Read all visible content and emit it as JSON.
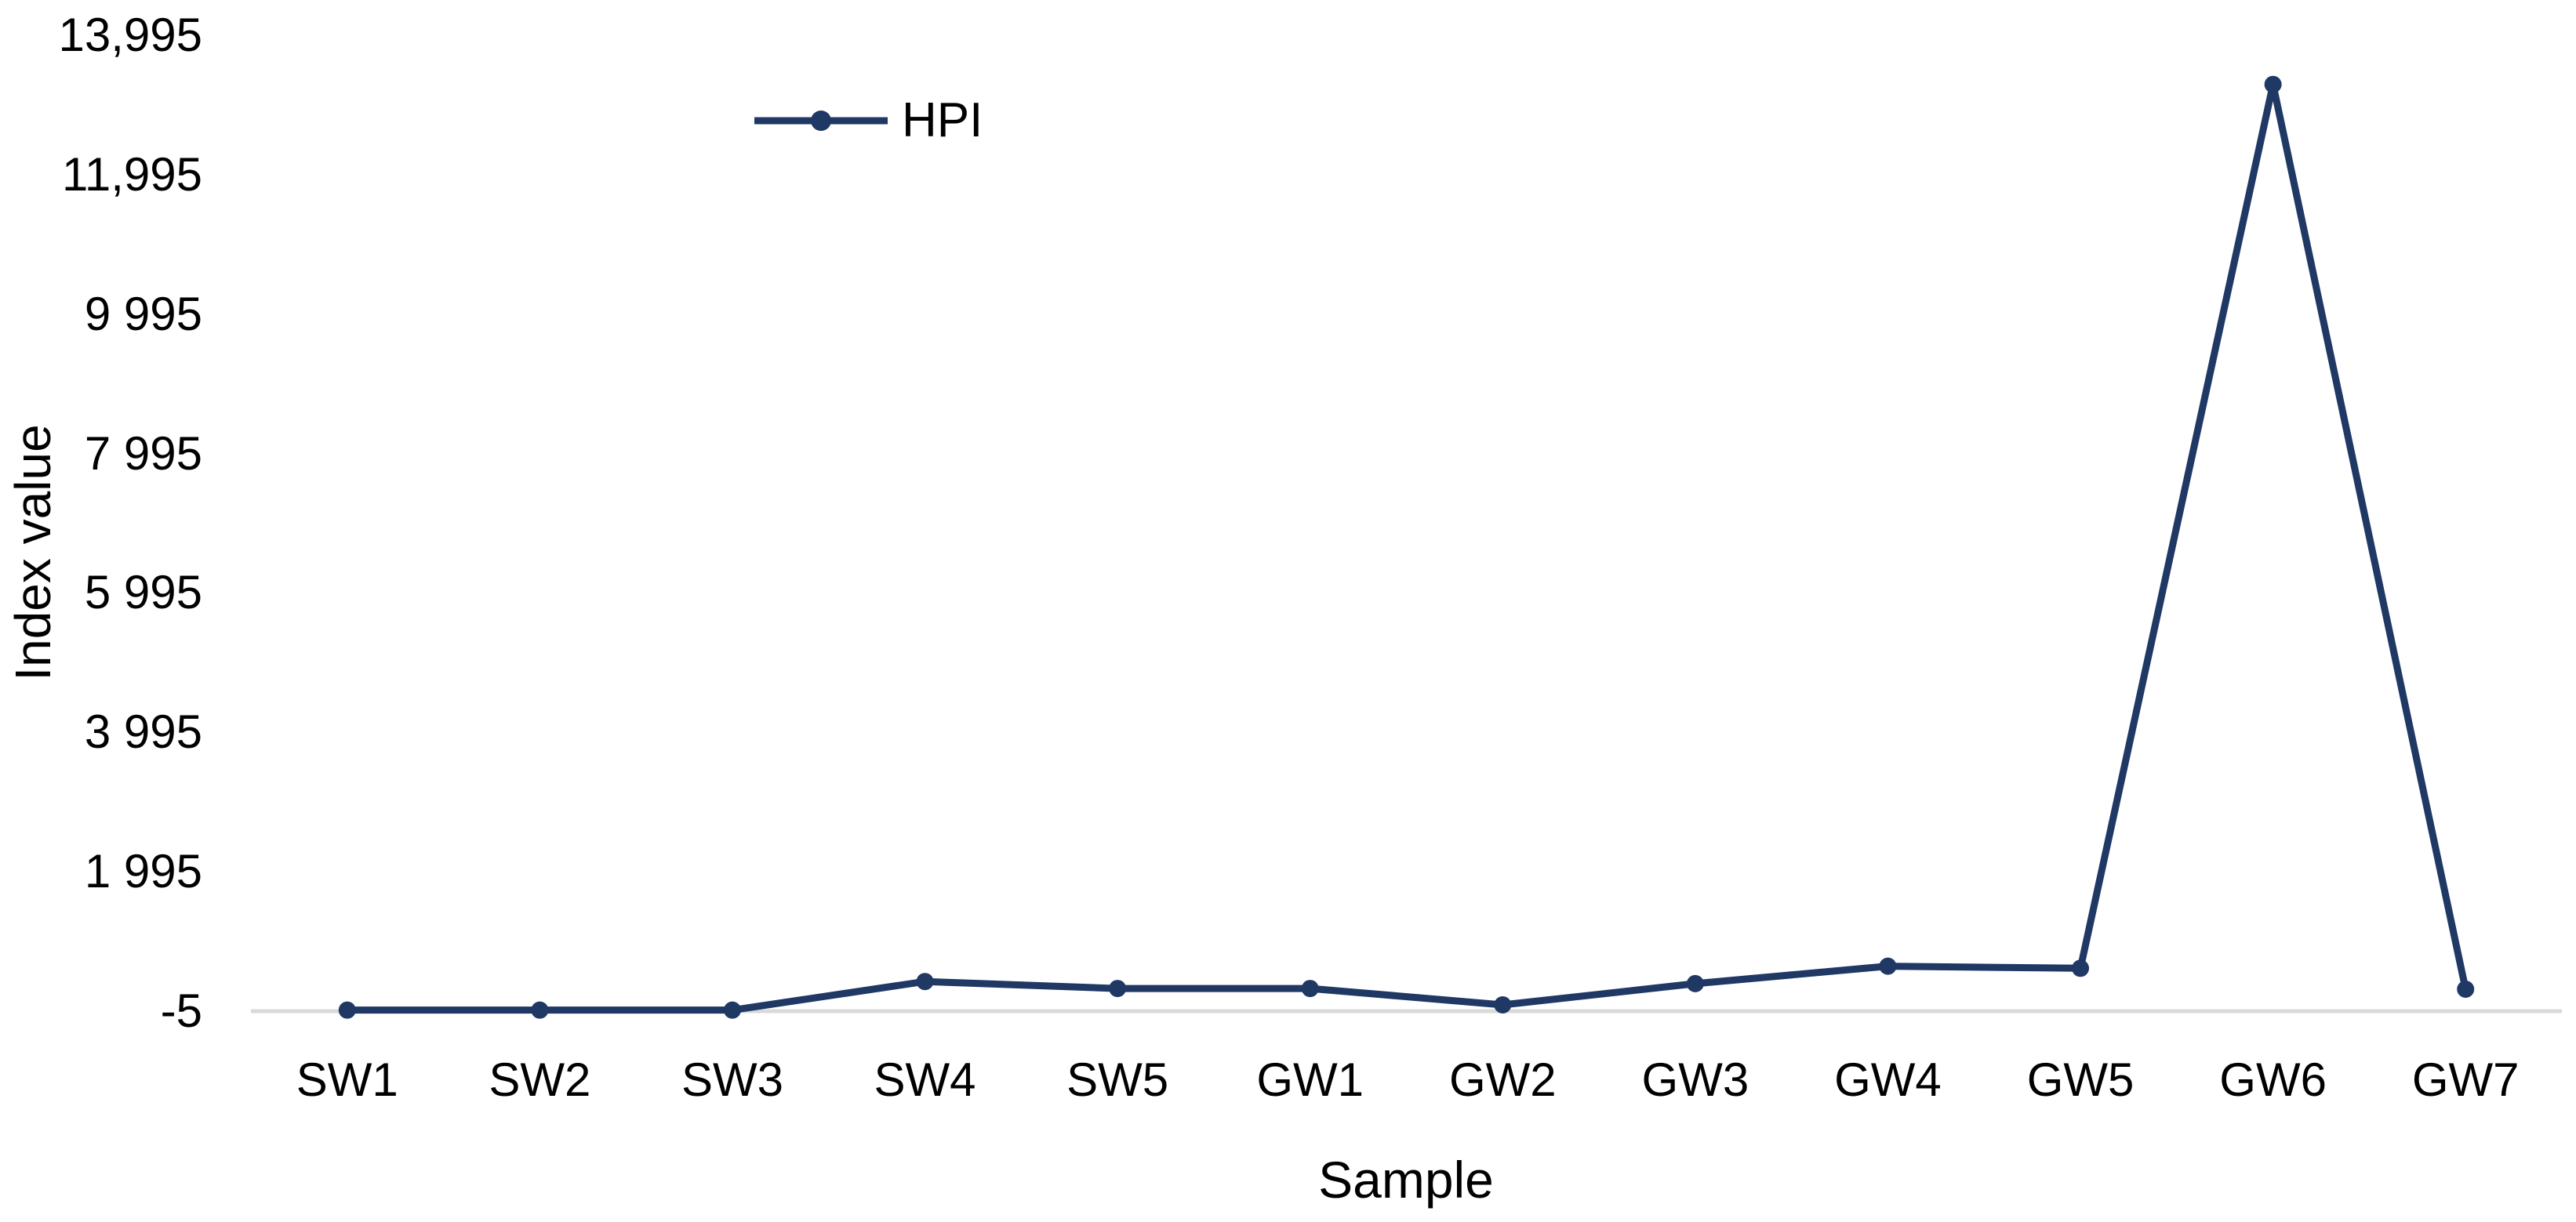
{
  "figure": {
    "background": "#ffffff"
  },
  "colors": {
    "series_line": "#1f3864",
    "marker_fill": "#1f3864",
    "axis_line": "#d9d9d9",
    "text": "#000000"
  },
  "chart_data": {
    "type": "line",
    "title": "",
    "xlabel": "Sample",
    "ylabel": "Index value",
    "categories": [
      "SW1",
      "SW2",
      "SW3",
      "SW4",
      "SW5",
      "GW1",
      "GW2",
      "GW3",
      "GW4",
      "GW5",
      "GW6",
      "GW7"
    ],
    "series": [
      {
        "name": "HPI",
        "color": "#1f3864",
        "marker": "circle",
        "values": [
          10,
          10,
          10,
          420,
          320,
          320,
          85,
          390,
          640,
          610,
          13290,
          310
        ]
      }
    ],
    "ylim": [
      -5,
      13995
    ],
    "yticks": [
      {
        "value": -5,
        "label": "-5"
      },
      {
        "value": 1995,
        "label": "1 995"
      },
      {
        "value": 3995,
        "label": "3 995"
      },
      {
        "value": 5995,
        "label": "5 995"
      },
      {
        "value": 7995,
        "label": "7 995"
      },
      {
        "value": 9995,
        "label": "9 995"
      },
      {
        "value": 11995,
        "label": "11,995"
      },
      {
        "value": 13995,
        "label": "13,995"
      }
    ],
    "grid": false,
    "legend_position": "inside-top-left",
    "legend_entries": [
      "HPI"
    ]
  }
}
